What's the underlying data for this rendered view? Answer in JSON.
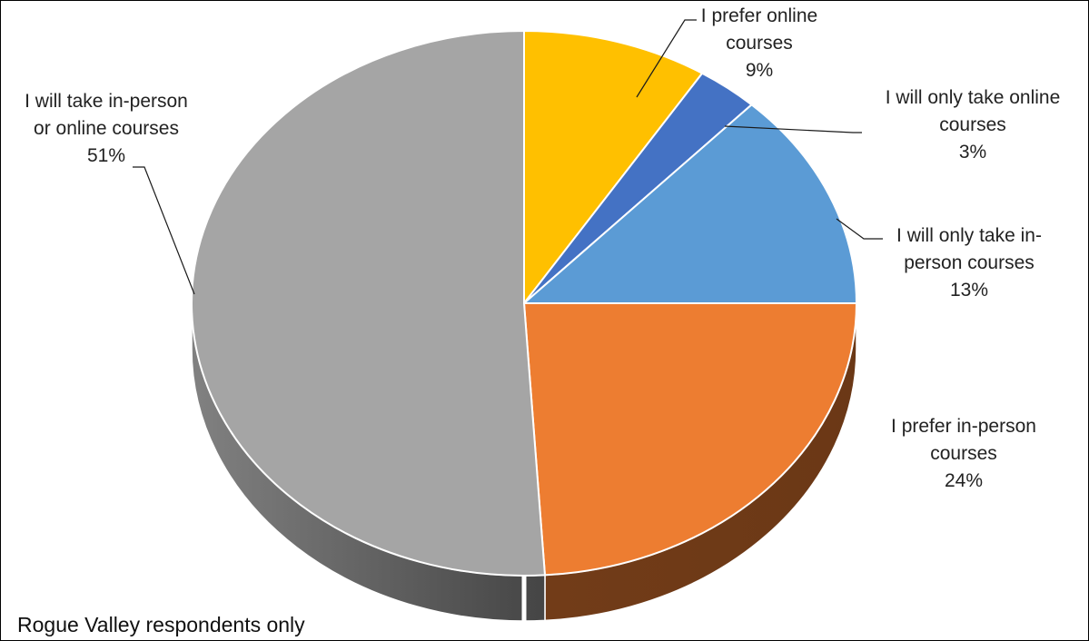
{
  "chart_data": {
    "type": "pie",
    "style": "3d",
    "note": "Rogue Valley respondents only",
    "series": [
      {
        "label_lines": [
          "I prefer online",
          "courses"
        ],
        "value": 9,
        "value_text": "9%",
        "color": "#FFC000"
      },
      {
        "label_lines": [
          "I will only take online",
          "courses"
        ],
        "value": 3,
        "value_text": "3%",
        "color": "#4472C4"
      },
      {
        "label_lines": [
          "I will only take in-",
          "person courses"
        ],
        "value": 13,
        "value_text": "13%",
        "color": "#5B9BD5"
      },
      {
        "label_lines": [
          "I prefer in-person",
          "courses"
        ],
        "value": 24,
        "value_text": "24%",
        "color": "#ED7D31"
      },
      {
        "label_lines": [
          "I will take in-person",
          "or online courses"
        ],
        "value": 51,
        "value_text": "51%",
        "color": "#A5A5A5"
      }
    ]
  }
}
